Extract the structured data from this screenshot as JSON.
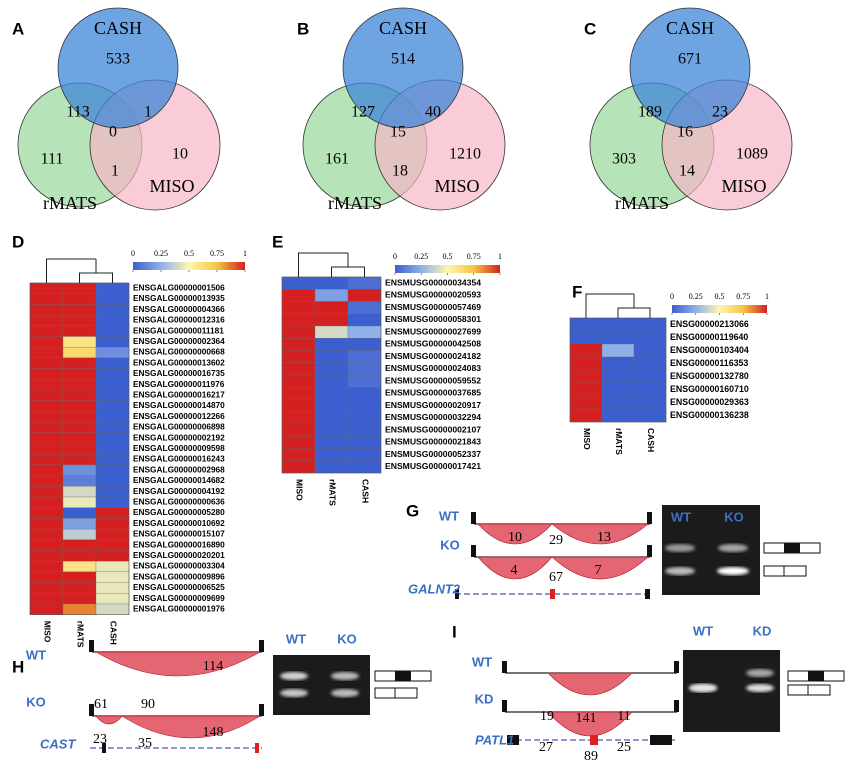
{
  "venns": [
    {
      "label": "A",
      "sets": [
        "CASH",
        "rMATS",
        "MISO"
      ],
      "counts": [
        533,
        113,
        1,
        0,
        111,
        10,
        1
      ]
    },
    {
      "label": "B",
      "sets": [
        "CASH",
        "rMATS",
        "MISO"
      ],
      "counts": [
        514,
        127,
        40,
        15,
        161,
        1210,
        18
      ]
    },
    {
      "label": "C",
      "sets": [
        "CASH",
        "rMATS",
        "MISO"
      ],
      "counts": [
        671,
        189,
        23,
        16,
        303,
        1089,
        14
      ]
    }
  ],
  "heatmaps": [
    {
      "label": "D",
      "columns": [
        "MISO",
        "rMATS",
        "CASH"
      ],
      "scale_ticks": [
        0,
        0.25,
        0.5,
        0.75,
        1
      ],
      "rows": [
        "ENSGALG00000001506",
        "ENSGALG00000013935",
        "ENSGALG00000004366",
        "ENSGALG00000012316",
        "ENSGALG00000011181",
        "ENSGALG00000002364",
        "ENSGALG00000000668",
        "ENSGALG00000013602",
        "ENSGALG00000016735",
        "ENSGALG00000011976",
        "ENSGALG00000016217",
        "ENSGALG00000014870",
        "ENSGALG00000012266",
        "ENSGALG00000006898",
        "ENSGALG00000002192",
        "ENSGALG00000009598",
        "ENSGALG00000016243",
        "ENSGALG00000002968",
        "ENSGALG00000014682",
        "ENSGALG00000004192",
        "ENSGALG00000000636",
        "ENSGALG00000005280",
        "ENSGALG00000010692",
        "ENSGALG00000015107",
        "ENSGALG00000016890",
        "ENSGALG00000020201",
        "ENSGALG00000003304",
        "ENSGALG00000009896",
        "ENSGALG00000006525",
        "ENSGALG00000009699",
        "ENSGALG00000001976"
      ],
      "values": [
        [
          1,
          1,
          0
        ],
        [
          1,
          1,
          0
        ],
        [
          1,
          1,
          0
        ],
        [
          1,
          1,
          0
        ],
        [
          1,
          1,
          0
        ],
        [
          1,
          0.6,
          0
        ],
        [
          1,
          0.65,
          0.15
        ],
        [
          1,
          1,
          0
        ],
        [
          1,
          1,
          0
        ],
        [
          1,
          1,
          0
        ],
        [
          1,
          1,
          0
        ],
        [
          1,
          1,
          0
        ],
        [
          1,
          1,
          0
        ],
        [
          1,
          1,
          0
        ],
        [
          1,
          1,
          0
        ],
        [
          1,
          1,
          0
        ],
        [
          1,
          1,
          0
        ],
        [
          1,
          0.15,
          0
        ],
        [
          1,
          0.1,
          0
        ],
        [
          1,
          0.4,
          0
        ],
        [
          1,
          0.45,
          0
        ],
        [
          1,
          0,
          1
        ],
        [
          1,
          0.2,
          1
        ],
        [
          1,
          0.35,
          1
        ],
        [
          1,
          1,
          1
        ],
        [
          1,
          1,
          1
        ],
        [
          1,
          0.6,
          0.45
        ],
        [
          1,
          1,
          0.45
        ],
        [
          1,
          1,
          0.45
        ],
        [
          1,
          1,
          0.45
        ],
        [
          1,
          0.85,
          0.4
        ]
      ]
    },
    {
      "label": "E",
      "columns": [
        "MISO",
        "rMATS",
        "CASH"
      ],
      "scale_ticks": [
        0,
        0.25,
        0.5,
        0.75,
        1
      ],
      "rows": [
        "ENSMUSG00000034354",
        "ENSMUSG00000020593",
        "ENSMUSG00000057469",
        "ENSMUSG00000058301",
        "ENSMUSG00000027699",
        "ENSMUSG00000042508",
        "ENSMUSG00000024182",
        "ENSMUSG00000024083",
        "ENSMUSG00000059552",
        "ENSMUSG00000037685",
        "ENSMUSG00000020917",
        "ENSMUSG00000032294",
        "ENSMUSG00000002107",
        "ENSMUSG00000021843",
        "ENSMUSG00000052337",
        "ENSMUSG00000017421"
      ],
      "values": [
        [
          0,
          0,
          0.05
        ],
        [
          1,
          0.2,
          1
        ],
        [
          1,
          1,
          0.05
        ],
        [
          1,
          1,
          0
        ],
        [
          1,
          0.4,
          0.25
        ],
        [
          1,
          0,
          0
        ],
        [
          1,
          0,
          0.05
        ],
        [
          1,
          0,
          0.05
        ],
        [
          1,
          0,
          0.05
        ],
        [
          1,
          0,
          0
        ],
        [
          1,
          0,
          0
        ],
        [
          1,
          0,
          0
        ],
        [
          1,
          0,
          0
        ],
        [
          1,
          0,
          0
        ],
        [
          1,
          0,
          0
        ],
        [
          1,
          0,
          0
        ]
      ]
    },
    {
      "label": "F",
      "columns": [
        "MISO",
        "rMATS",
        "CASH"
      ],
      "scale_ticks": [
        0,
        0.25,
        0.5,
        0.75,
        1
      ],
      "rows": [
        "ENSG00000213066",
        "ENSG00000119640",
        "ENSG00000103404",
        "ENSG00000116353",
        "ENSG00000132780",
        "ENSG00000160710",
        "ENSG00000029363",
        "ENSG00000136238"
      ],
      "values": [
        [
          0,
          0,
          0
        ],
        [
          0,
          0,
          0
        ],
        [
          1,
          0.25,
          0
        ],
        [
          1,
          0,
          0
        ],
        [
          1,
          0,
          0
        ],
        [
          1,
          0,
          0
        ],
        [
          1,
          0,
          0
        ],
        [
          1,
          0,
          0
        ]
      ]
    }
  ],
  "sashimi": [
    {
      "label": "G",
      "tracks": [
        "WT",
        "KO"
      ],
      "gene": "GALNT2",
      "junctions": [
        10,
        29,
        13,
        4,
        67,
        7
      ],
      "gel_lanes": [
        "WT",
        "KO"
      ]
    },
    {
      "label": "H",
      "tracks": [
        "WT",
        "KO"
      ],
      "gene": "CAST",
      "junctions": [
        114,
        61,
        90,
        148,
        23,
        35
      ],
      "gel_lanes": [
        "WT",
        "KO"
      ]
    },
    {
      "label": "I",
      "tracks": [
        "WT",
        "KD"
      ],
      "gene": "PATL1",
      "junctions": [
        19,
        141,
        11,
        27,
        89,
        25
      ],
      "gel_lanes": [
        "WT",
        "KD"
      ]
    }
  ]
}
